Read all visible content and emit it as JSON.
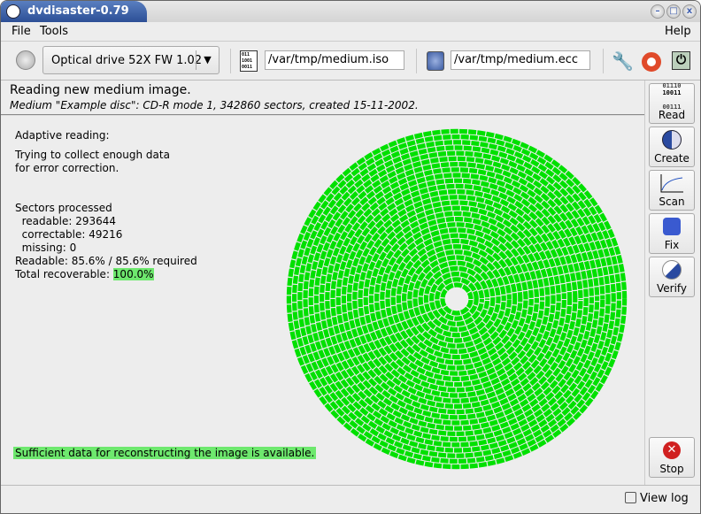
{
  "window": {
    "title": "dvdisaster-0.79"
  },
  "menu": {
    "file": "File",
    "tools": "Tools",
    "help": "Help"
  },
  "toolbar": {
    "drive": "Optical drive 52X FW 1.02",
    "image_path": "/var/tmp/medium.iso",
    "ecc_path": "/var/tmp/medium.ecc"
  },
  "status": {
    "line1": "Reading new medium image.",
    "line2": "Medium \"Example disc\": CD-R mode 1, 342860 sectors, created 15-11-2002."
  },
  "info": {
    "heading": "Adaptive reading:",
    "desc1": "Trying to collect enough data",
    "desc2": "for error correction.",
    "processed": "Sectors processed",
    "readable": "  readable: 293644",
    "correctable": "  correctable: 49216",
    "missing": "  missing: 0",
    "readable_pct": "Readable: 85.6% / 85.6% required",
    "recoverable_label": "Total recoverable: ",
    "recoverable_value": "100.0%",
    "footer": "Sufficient data for reconstructing the image is available."
  },
  "sidebar": {
    "read": "Read",
    "create": "Create",
    "scan": "Scan",
    "fix": "Fix",
    "verify": "Verify",
    "stop": "Stop"
  },
  "bottom": {
    "view_log": "View log"
  },
  "colors": {
    "sector_ok": "#00e000",
    "highlight": "#6ee86e",
    "title_blue": "#2c4f96"
  }
}
